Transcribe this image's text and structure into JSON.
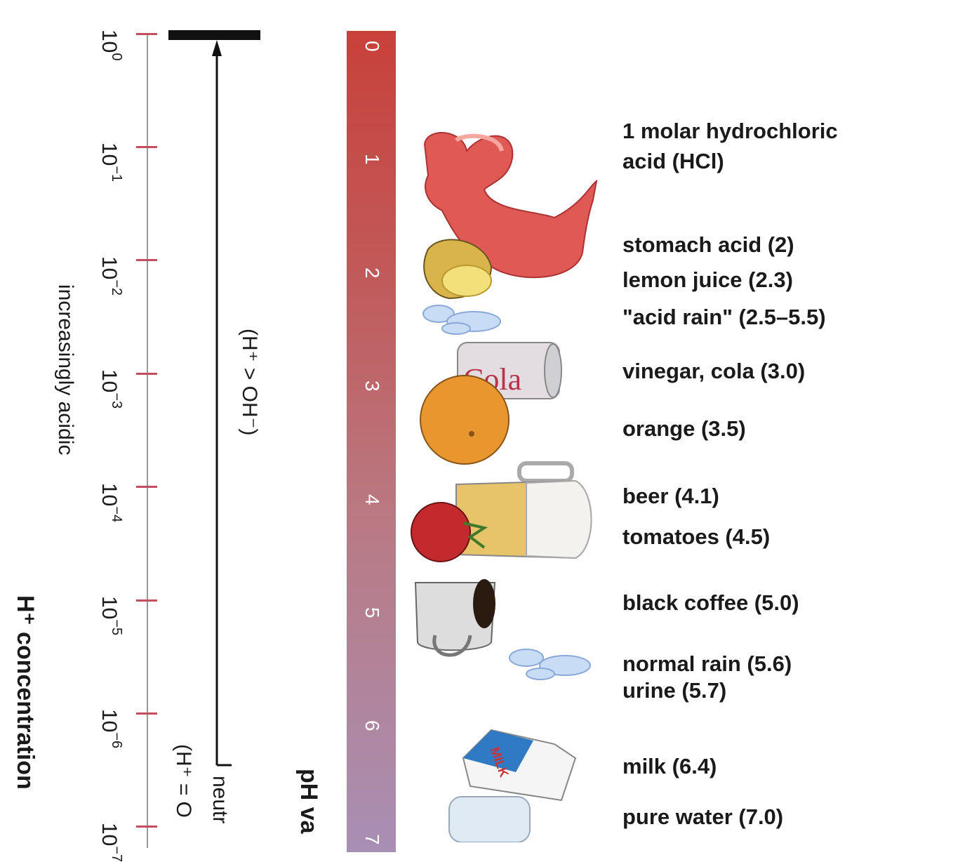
{
  "h_concentration": {
    "title": "H⁺ concentration",
    "ticks": [
      {
        "base": "10",
        "exp": "0"
      },
      {
        "base": "10",
        "exp": "−1"
      },
      {
        "base": "10",
        "exp": "−2"
      },
      {
        "base": "10",
        "exp": "−3"
      },
      {
        "base": "10",
        "exp": "−4"
      },
      {
        "base": "10",
        "exp": "−5"
      },
      {
        "base": "10",
        "exp": "−6"
      },
      {
        "base": "10",
        "exp": "−7"
      }
    ],
    "direction_label": "increasingly acidic"
  },
  "arrow": {
    "acidic_label": "(H⁺ > OH⁻)",
    "neutral_label": "neutr",
    "neutral_eq": "(H⁺ = O"
  },
  "ph_scale": {
    "title": "pH va",
    "values": [
      "0",
      "1",
      "2",
      "3",
      "4",
      "5",
      "6",
      "7"
    ],
    "colors": {
      "top": "#c8413a",
      "bottom": "#a88fb4"
    }
  },
  "examples": [
    {
      "line1": "1 molar hydrochloric",
      "line2": "acid (HCl)"
    },
    {
      "line1": "stomach acid (2)"
    },
    {
      "line1": "lemon juice (2.3)"
    },
    {
      "line1": "\"acid rain\" (2.5–5.5)"
    },
    {
      "line1": "vinegar, cola (3.0)"
    },
    {
      "line1": "orange (3.5)"
    },
    {
      "line1": "beer (4.1)"
    },
    {
      "line1": "tomatoes (4.5)"
    },
    {
      "line1": "black coffee (5.0)"
    },
    {
      "line1": "normal rain (5.6)"
    },
    {
      "line1": "urine (5.7)"
    },
    {
      "line1": "milk (6.4)"
    },
    {
      "line1": "pure water (7.0)"
    }
  ],
  "illustrations": {
    "cola_can_text": "Cola",
    "milk_carton_text": "MILK"
  }
}
